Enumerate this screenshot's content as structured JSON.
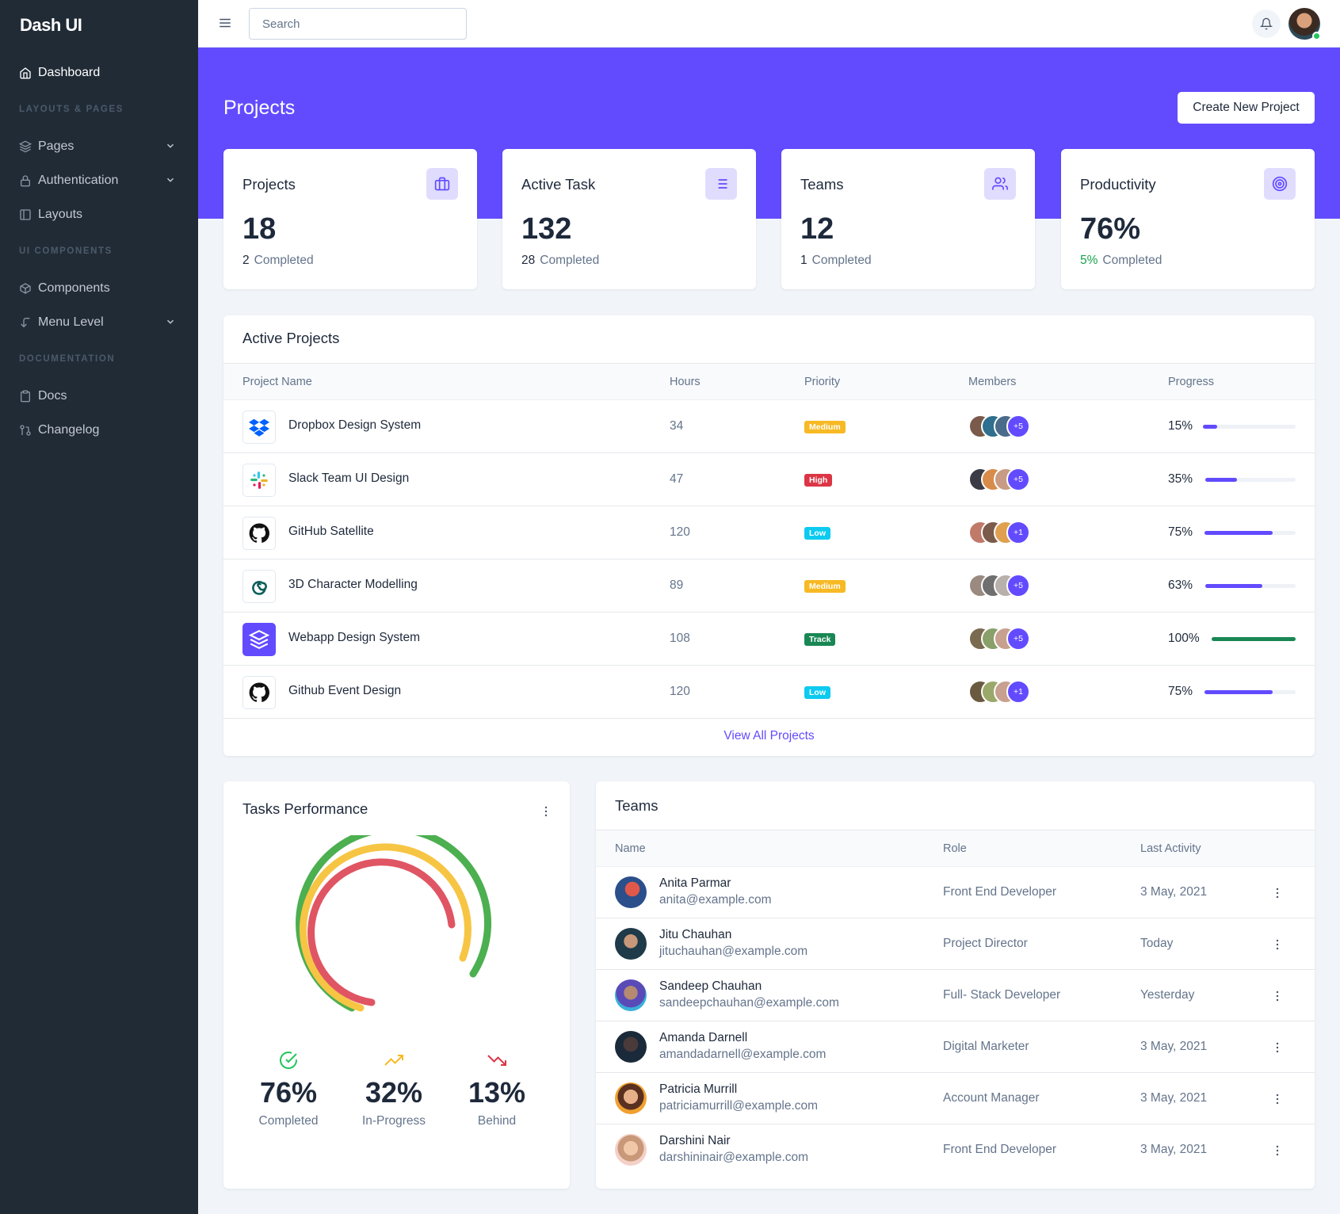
{
  "brand": "Dash UI",
  "sidebar": {
    "dashboard": "Dashboard",
    "headings": [
      "LAYOUTS & PAGES",
      "UI COMPONENTS",
      "DOCUMENTATION"
    ],
    "items": [
      {
        "label": "Pages",
        "icon": "layers-icon",
        "expandable": true
      },
      {
        "label": "Authentication",
        "icon": "lock-icon",
        "expandable": true
      },
      {
        "label": "Layouts",
        "icon": "sidebar-layout-icon",
        "expandable": false
      },
      {
        "label": "Components",
        "icon": "package-icon",
        "expandable": false
      },
      {
        "label": "Menu Level",
        "icon": "corner-left-down-icon",
        "expandable": true
      },
      {
        "label": "Docs",
        "icon": "clipboard-icon",
        "expandable": false
      },
      {
        "label": "Changelog",
        "icon": "git-pull-request-icon",
        "expandable": false
      }
    ]
  },
  "topbar": {
    "search_placeholder": "Search",
    "notification_icon": "bell-icon",
    "online_status_color": "#22c55e"
  },
  "header": {
    "title": "Projects",
    "create_button": "Create New Project",
    "banner_color": "#624bff"
  },
  "stats": [
    {
      "title": "Projects",
      "value": "18",
      "sub_num": "2",
      "sub_label": "Completed",
      "icon": "briefcase-icon"
    },
    {
      "title": "Active Task",
      "value": "132",
      "sub_num": "28",
      "sub_label": "Completed",
      "icon": "list-icon"
    },
    {
      "title": "Teams",
      "value": "12",
      "sub_num": "1",
      "sub_label": "Completed",
      "icon": "users-icon"
    },
    {
      "title": "Productivity",
      "value": "76%",
      "sub_num": "5%",
      "sub_label": "Completed",
      "icon": "target-icon"
    }
  ],
  "active_projects": {
    "title": "Active Projects",
    "columns": [
      "Project Name",
      "Hours",
      "Priority",
      "Members",
      "Progress"
    ],
    "rows": [
      {
        "name": "Dropbox Design System",
        "logo": "dropbox-icon",
        "hours": "34",
        "priority": "Medium",
        "priority_color": "#f7b924",
        "more": "+5",
        "progress": "15%",
        "progress_value": 15
      },
      {
        "name": "Slack Team UI Design",
        "logo": "slack-icon",
        "hours": "47",
        "priority": "High",
        "priority_color": "#dc3545",
        "more": "+5",
        "progress": "35%",
        "progress_value": 35
      },
      {
        "name": "GitHub Satellite",
        "logo": "github-icon",
        "hours": "120",
        "priority": "Low",
        "priority_color": "#0dcaf0",
        "more": "+1",
        "progress": "75%",
        "progress_value": 75
      },
      {
        "name": "3D Character Modelling",
        "logo": "spiral-logo-icon",
        "hours": "89",
        "priority": "Medium",
        "priority_color": "#f7b924",
        "more": "+5",
        "progress": "63%",
        "progress_value": 63
      },
      {
        "name": "Webapp Design System",
        "logo": "layers-logo-icon",
        "hours": "108",
        "priority": "Track",
        "priority_color": "#198754",
        "more": "+5",
        "progress": "100%",
        "progress_value": 100
      },
      {
        "name": "Github Event Design",
        "logo": "github-icon",
        "hours": "120",
        "priority": "Low",
        "priority_color": "#0dcaf0",
        "more": "+1",
        "progress": "75%",
        "progress_value": 75
      }
    ],
    "view_all": "View All Projects"
  },
  "tasks_performance": {
    "title": "Tasks Performance",
    "metrics": [
      {
        "value": "76%",
        "label": "Completed",
        "icon": "check-circle-icon",
        "color": "#22c55e"
      },
      {
        "value": "32%",
        "label": "In-Progress",
        "icon": "trending-up-icon",
        "color": "#f7b924"
      },
      {
        "value": "13%",
        "label": "Behind",
        "icon": "trending-down-icon",
        "color": "#dc3545"
      }
    ]
  },
  "teams": {
    "title": "Teams",
    "columns": [
      "Name",
      "Role",
      "Last Activity"
    ],
    "rows": [
      {
        "name": "Anita Parmar",
        "email": "anita@example.com",
        "role": "Front End Developer",
        "last": "3 May, 2021"
      },
      {
        "name": "Jitu Chauhan",
        "email": "jituchauhan@example.com",
        "role": "Project Director",
        "last": "Today"
      },
      {
        "name": "Sandeep Chauhan",
        "email": "sandeepchauhan@example.com",
        "role": "Full- Stack Developer",
        "last": "Yesterday"
      },
      {
        "name": "Amanda Darnell",
        "email": "amandadarnell@example.com",
        "role": "Digital Marketer",
        "last": "3 May, 2021"
      },
      {
        "name": "Patricia Murrill",
        "email": "patriciamurrill@example.com",
        "role": "Account Manager",
        "last": "3 May, 2021"
      },
      {
        "name": "Darshini Nair",
        "email": "darshininair@example.com",
        "role": "Front End Developer",
        "last": "3 May, 2021"
      }
    ]
  }
}
